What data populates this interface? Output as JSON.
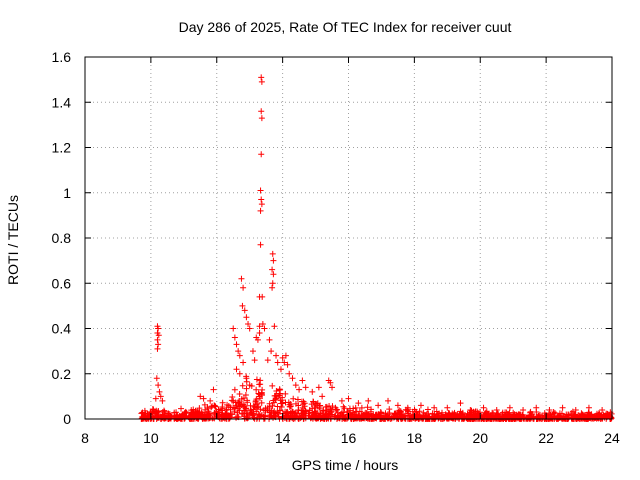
{
  "chart_data": {
    "type": "scatter",
    "title": "Day 286 of 2025, Rate Of TEC Index for receiver cuut",
    "xlabel": "GPS time / hours",
    "ylabel": "ROTI / TECUs",
    "xlim": [
      8,
      24
    ],
    "ylim": [
      0,
      1.6
    ],
    "x_ticks": [
      8,
      10,
      12,
      14,
      16,
      18,
      20,
      22,
      24
    ],
    "y_ticks": [
      0,
      0.2,
      0.4,
      0.6,
      0.8,
      1,
      1.2,
      1.4,
      1.6
    ],
    "y_tick_labels": [
      "0",
      "0.2",
      "0.4",
      "0.6",
      "0.8",
      "1",
      "1.2",
      "1.4",
      "1.6"
    ],
    "grid": true,
    "marker": "+",
    "marker_color": "#ff0000",
    "series": [
      {
        "name": "ROTI",
        "points": [
          [
            10.2,
            0.41
          ],
          [
            10.22,
            0.4
          ],
          [
            10.2,
            0.38
          ],
          [
            10.24,
            0.37
          ],
          [
            10.2,
            0.35
          ],
          [
            10.22,
            0.33
          ],
          [
            10.2,
            0.31
          ],
          [
            10.18,
            0.18
          ],
          [
            10.22,
            0.15
          ],
          [
            10.26,
            0.12
          ],
          [
            10.3,
            0.1
          ],
          [
            10.15,
            0.09
          ],
          [
            10.35,
            0.08
          ],
          [
            11.5,
            0.1
          ],
          [
            11.6,
            0.09
          ],
          [
            11.9,
            0.13
          ],
          [
            11.8,
            0.08
          ],
          [
            12.5,
            0.4
          ],
          [
            12.55,
            0.36
          ],
          [
            12.6,
            0.33
          ],
          [
            12.65,
            0.3
          ],
          [
            12.7,
            0.28
          ],
          [
            12.75,
            0.62
          ],
          [
            12.8,
            0.58
          ],
          [
            12.78,
            0.5
          ],
          [
            12.85,
            0.48
          ],
          [
            12.9,
            0.45
          ],
          [
            12.95,
            0.42
          ],
          [
            13.0,
            0.4
          ],
          [
            12.6,
            0.22
          ],
          [
            12.7,
            0.2
          ],
          [
            12.8,
            0.25
          ],
          [
            12.9,
            0.18
          ],
          [
            13.0,
            0.15
          ],
          [
            13.1,
            0.3
          ],
          [
            13.2,
            0.36
          ],
          [
            13.25,
            0.35
          ],
          [
            13.3,
            0.38
          ],
          [
            13.15,
            0.26
          ],
          [
            13.35,
            1.51
          ],
          [
            13.37,
            1.49
          ],
          [
            13.35,
            1.36
          ],
          [
            13.37,
            1.33
          ],
          [
            13.35,
            1.17
          ],
          [
            13.33,
            1.01
          ],
          [
            13.35,
            0.97
          ],
          [
            13.37,
            0.95
          ],
          [
            13.33,
            0.92
          ],
          [
            13.33,
            0.77
          ],
          [
            13.3,
            0.54
          ],
          [
            13.38,
            0.54
          ],
          [
            13.3,
            0.41
          ],
          [
            13.4,
            0.42
          ],
          [
            13.45,
            0.4
          ],
          [
            13.7,
            0.73
          ],
          [
            13.72,
            0.7
          ],
          [
            13.68,
            0.66
          ],
          [
            13.72,
            0.64
          ],
          [
            13.7,
            0.6
          ],
          [
            13.68,
            0.58
          ],
          [
            13.75,
            0.41
          ],
          [
            13.6,
            0.35
          ],
          [
            13.65,
            0.3
          ],
          [
            13.8,
            0.28
          ],
          [
            13.55,
            0.26
          ],
          [
            13.85,
            0.25
          ],
          [
            14.0,
            0.27
          ],
          [
            14.05,
            0.25
          ],
          [
            14.1,
            0.28
          ],
          [
            14.15,
            0.24
          ],
          [
            13.95,
            0.22
          ],
          [
            14.2,
            0.2
          ],
          [
            14.3,
            0.18
          ],
          [
            14.4,
            0.15
          ],
          [
            14.5,
            0.13
          ],
          [
            14.6,
            0.17
          ],
          [
            14.7,
            0.14
          ],
          [
            14.9,
            0.12
          ],
          [
            15.1,
            0.14
          ],
          [
            15.2,
            0.1
          ],
          [
            15.4,
            0.17
          ],
          [
            15.45,
            0.16
          ],
          [
            15.5,
            0.14
          ],
          [
            15.8,
            0.08
          ],
          [
            16.0,
            0.09
          ],
          [
            16.3,
            0.07
          ],
          [
            16.6,
            0.08
          ],
          [
            16.9,
            0.06
          ],
          [
            17.2,
            0.08
          ],
          [
            17.5,
            0.06
          ],
          [
            17.8,
            0.05
          ],
          [
            18.2,
            0.06
          ],
          [
            18.6,
            0.05
          ],
          [
            19.0,
            0.05
          ],
          [
            19.4,
            0.07
          ],
          [
            19.7,
            0.04
          ],
          [
            20.1,
            0.05
          ],
          [
            20.5,
            0.04
          ],
          [
            20.9,
            0.05
          ],
          [
            21.3,
            0.04
          ],
          [
            21.7,
            0.05
          ],
          [
            22.1,
            0.04
          ],
          [
            22.5,
            0.05
          ],
          [
            22.9,
            0.04
          ],
          [
            23.3,
            0.05
          ],
          [
            23.7,
            0.04
          ],
          [
            23.95,
            0.03
          ]
        ],
        "dense_band": [
          [
            9.7,
            0.06
          ],
          [
            10.5,
            0.05
          ],
          [
            11.5,
            0.06
          ],
          [
            12.3,
            0.09
          ],
          [
            12.6,
            0.2
          ],
          [
            13.0,
            0.22
          ],
          [
            13.5,
            0.18
          ],
          [
            14.0,
            0.16
          ],
          [
            14.5,
            0.12
          ],
          [
            15.0,
            0.1
          ],
          [
            15.5,
            0.08
          ],
          [
            16.0,
            0.06
          ],
          [
            17.0,
            0.05
          ],
          [
            18.0,
            0.05
          ],
          [
            19.0,
            0.04
          ],
          [
            20.0,
            0.04
          ],
          [
            21.0,
            0.035
          ],
          [
            22.0,
            0.035
          ],
          [
            23.0,
            0.035
          ],
          [
            24.0,
            0.03
          ]
        ]
      }
    ]
  }
}
